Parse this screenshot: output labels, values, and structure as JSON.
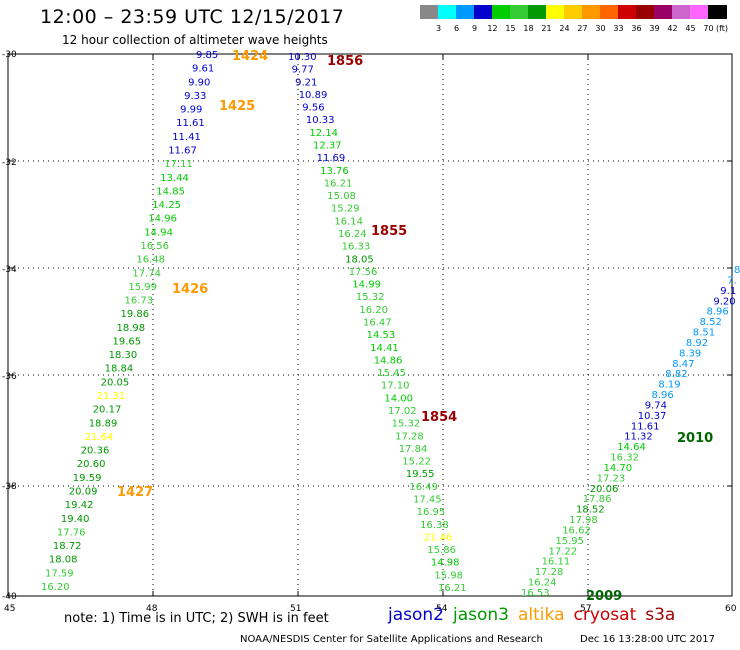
{
  "header": {
    "title": "12:00 – 23:59 UTC 12/15/2017",
    "subtitle": "12 hour collection of altimeter wave heights"
  },
  "color_scale": {
    "unit": "(ft)",
    "colors": [
      "#888888",
      "#00ffff",
      "#0099ff",
      "#0000cc",
      "#00cc00",
      "#33cc33",
      "#009900",
      "#ffff00",
      "#ffcc00",
      "#ff9900",
      "#ff6600",
      "#cc0000",
      "#990000",
      "#990066",
      "#cc66cc",
      "#ff66ff",
      "#000000"
    ],
    "labels": [
      "3",
      "6",
      "9",
      "12",
      "15",
      "18",
      "21",
      "24",
      "27",
      "30",
      "33",
      "36",
      "39",
      "42",
      "45",
      "70"
    ]
  },
  "axes": {
    "lat_labels": [
      "-30",
      "-32",
      "-34",
      "-36",
      "-38",
      "-40"
    ],
    "lon_labels": [
      "45",
      "48",
      "51",
      "54",
      "57",
      "60"
    ]
  },
  "tracks": [
    {
      "name": "1424",
      "label_color": "#ff9900",
      "values": [
        "9.85",
        "9.61",
        "9.90",
        "9.33",
        "9.99",
        "11.61",
        "11.41",
        "11.67",
        "17.11",
        "13.44",
        "14.85",
        "14.25",
        "14.96",
        "14.94",
        "16.56",
        "16.48",
        "17.74",
        "15.99",
        "16.73",
        "19.86",
        "18.98",
        "19.65",
        "18.30",
        "18.84",
        "20.05",
        "21.31",
        "20.17",
        "18.89",
        "21.64",
        "20.36",
        "20.60",
        "19.59",
        "20.09",
        "19.42",
        "19.40",
        "17.76",
        "18.72",
        "18.08",
        "17.59",
        "16.20"
      ]
    },
    {
      "name": "1856",
      "label_color": "#990000",
      "values": [
        "10.30",
        "9.77",
        "9.21",
        "10.89",
        "9.56",
        "10.33",
        "12.14",
        "12.37",
        "11.69",
        "13.76",
        "16.21",
        "15.08",
        "15.29",
        "16.14",
        "16.24",
        "16.33",
        "18.05",
        "17.56",
        "14.99",
        "15.32",
        "16.20",
        "16.47",
        "14.53",
        "14.41",
        "14.86",
        "15.45",
        "17.10",
        "14.00",
        "17.02",
        "15.32",
        "17.28",
        "17.84",
        "15.22",
        "19.55",
        "16.49",
        "17.45",
        "16.95",
        "16.38",
        "21.46",
        "15.86",
        "14.98",
        "15.98",
        "16.21"
      ]
    },
    {
      "name": "2009",
      "label_color": "#006600",
      "values": [
        "16.53",
        "16.24",
        "17.28",
        "16.11",
        "17.22",
        "15.95",
        "16.62",
        "17.98",
        "18.52",
        "17.86",
        "20.06",
        "17.23",
        "14.70",
        "16.32",
        "14.64",
        "11.32",
        "11.61",
        "10.37",
        "9.74",
        "8.96",
        "8.19",
        "8.82",
        "8.47",
        "8.39",
        "8.92",
        "8.51",
        "8.52",
        "8.96",
        "9.20",
        "9.1",
        "7.",
        "8"
      ]
    }
  ],
  "track_labels": [
    {
      "text": "1424",
      "color": "#ff9900"
    },
    {
      "text": "1425",
      "color": "#ff9900"
    },
    {
      "text": "1426",
      "color": "#ff9900"
    },
    {
      "text": "1427",
      "color": "#ff9900"
    },
    {
      "text": "1856",
      "color": "#990000"
    },
    {
      "text": "1855",
      "color": "#990000"
    },
    {
      "text": "1854",
      "color": "#990000"
    },
    {
      "text": "2010",
      "color": "#006600"
    },
    {
      "text": "2009",
      "color": "#006600"
    }
  ],
  "footer": {
    "note": "note:  1) Time is in UTC;  2) SWH is in feet",
    "satellites": [
      {
        "name": "jason2",
        "color": "#0000cc"
      },
      {
        "name": "jason3",
        "color": "#009900"
      },
      {
        "name": "altika",
        "color": "#ff9900"
      },
      {
        "name": "cryosat",
        "color": "#cc0000"
      },
      {
        "name": "s3a",
        "color": "#990000"
      }
    ],
    "credit": "NOAA/NESDIS Center for Satellite Applications and Research",
    "timestamp": "Dec 16 13:28:00 UTC 2017"
  }
}
